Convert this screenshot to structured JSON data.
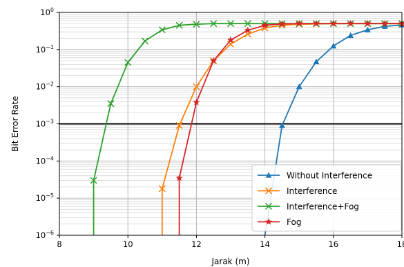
{
  "chart_data": {
    "type": "line",
    "xlabel": "Jarak (m)",
    "ylabel": "Bit Error Rate",
    "xlim": [
      8,
      18
    ],
    "ylim": [
      1e-06,
      1
    ],
    "yscale": "log",
    "x_ticks": [
      "8",
      "10",
      "12",
      "14",
      "16",
      "18"
    ],
    "y_ticks": [
      {
        "base": "10",
        "exp": "0",
        "value": 1
      },
      {
        "base": "10",
        "exp": "−1",
        "value": 0.1
      },
      {
        "base": "10",
        "exp": "−2",
        "value": 0.01
      },
      {
        "base": "10",
        "exp": "−3",
        "value": 0.001
      },
      {
        "base": "10",
        "exp": "−4",
        "value": 0.0001
      },
      {
        "base": "10",
        "exp": "−5",
        "value": 1e-05
      },
      {
        "base": "10",
        "exp": "−6",
        "value": 1e-06
      }
    ],
    "grid": true,
    "reference_line": {
      "y": 0.001,
      "color": "#000000"
    },
    "legend_position": "lower right",
    "series": [
      {
        "name": "Without Interference",
        "color": "#1f77b4",
        "marker": "triangle",
        "x": [
          14.0,
          14.5,
          15.0,
          15.5,
          16.0,
          16.5,
          17.0,
          17.5,
          18.0
        ],
        "y": [
          1e-06,
          0.0009,
          0.01,
          0.047,
          0.125,
          0.24,
          0.34,
          0.42,
          0.46
        ]
      },
      {
        "name": "Interference",
        "color": "#ff7f0e",
        "marker": "x",
        "x": [
          11.0,
          11.0,
          11.5,
          12.0,
          12.5,
          13.0,
          13.5,
          14.0,
          14.5,
          15.0,
          15.5,
          16.0,
          16.5,
          17.0,
          17.5,
          18.0
        ],
        "y": [
          1e-06,
          1.8e-05,
          0.0009,
          0.01,
          0.05,
          0.14,
          0.26,
          0.38,
          0.45,
          0.48,
          0.49,
          0.5,
          0.5,
          0.5,
          0.5,
          0.5
        ]
      },
      {
        "name": "Interference+Fog",
        "color": "#2ca02c",
        "marker": "x",
        "x": [
          9.0,
          9.0,
          9.5,
          10.0,
          10.5,
          11.0,
          11.5,
          12.0,
          12.5,
          13.0,
          13.5,
          14.0,
          14.5,
          15.0,
          15.5,
          16.0,
          16.5,
          17.0,
          17.5,
          18.0
        ],
        "y": [
          1e-06,
          3e-05,
          0.0035,
          0.045,
          0.17,
          0.34,
          0.45,
          0.48,
          0.5,
          0.5,
          0.5,
          0.5,
          0.5,
          0.5,
          0.5,
          0.5,
          0.5,
          0.5,
          0.5,
          0.5
        ]
      },
      {
        "name": "Fog",
        "color": "#d62728",
        "marker": "star",
        "x": [
          11.5,
          11.5,
          12.0,
          12.5,
          13.0,
          13.5,
          14.0,
          14.5,
          15.0,
          15.5,
          16.0,
          16.5,
          17.0,
          17.5,
          18.0
        ],
        "y": [
          1e-06,
          3.5e-05,
          0.0038,
          0.05,
          0.18,
          0.33,
          0.45,
          0.49,
          0.5,
          0.5,
          0.5,
          0.5,
          0.5,
          0.5,
          0.5
        ]
      }
    ]
  }
}
